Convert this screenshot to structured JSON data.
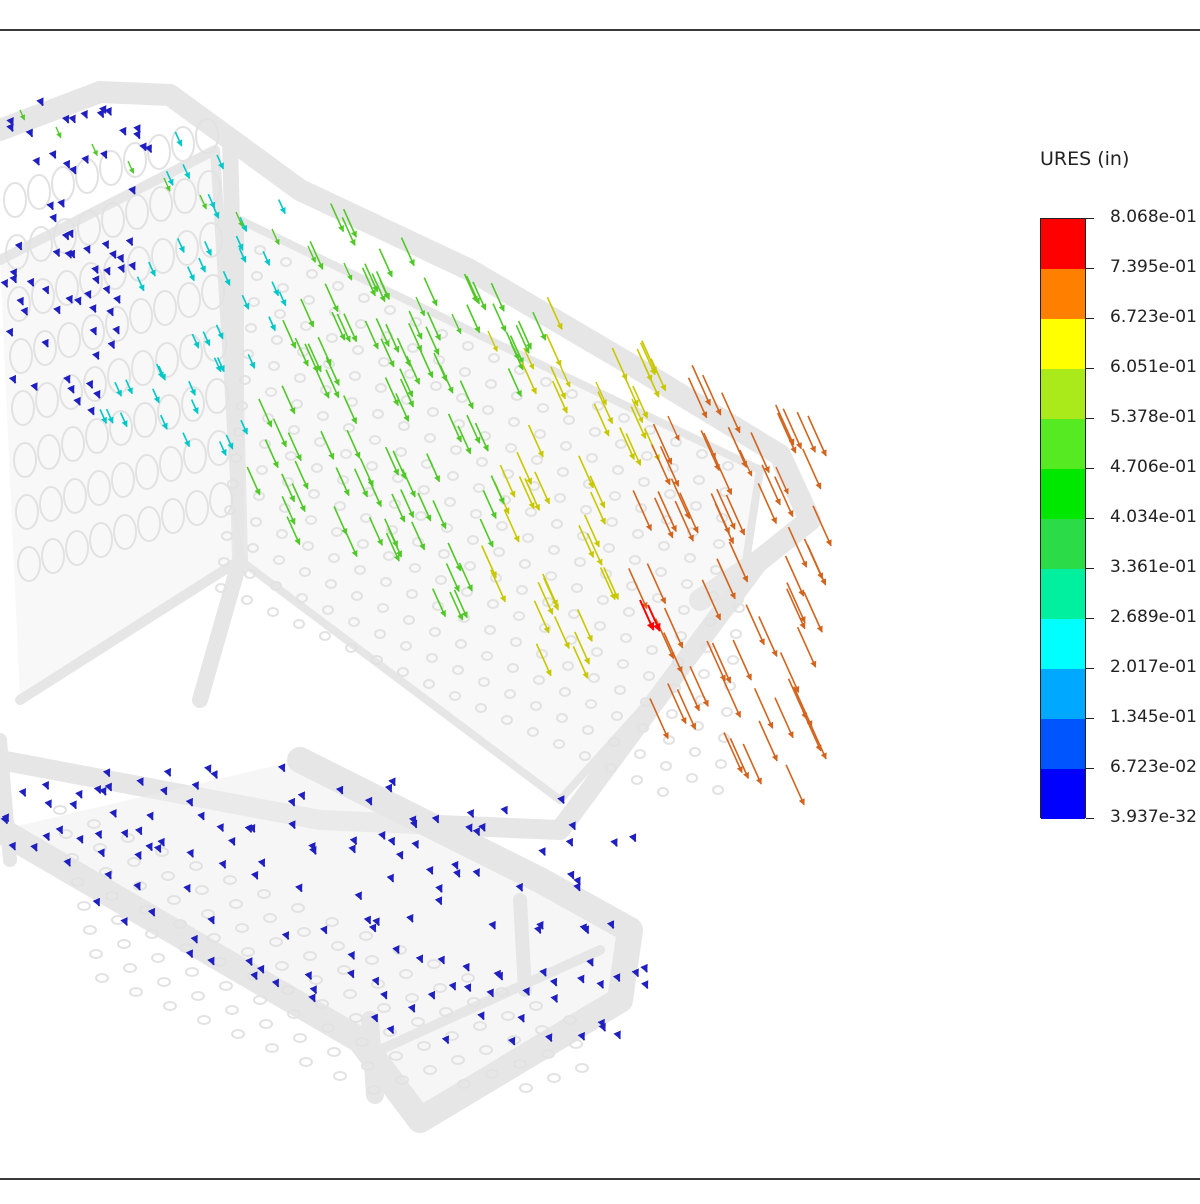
{
  "legend": {
    "title": "URES (in)",
    "labels": [
      "8.068e-01",
      "7.395e-01",
      "6.723e-01",
      "6.051e-01",
      "5.378e-01",
      "4.706e-01",
      "4.034e-01",
      "3.361e-01",
      "2.689e-01",
      "2.017e-01",
      "1.345e-01",
      "6.723e-02",
      "3.937e-32"
    ],
    "colors": [
      "#ff0000",
      "#ff7f00",
      "#ffff00",
      "#aaea1a",
      "#55ea22",
      "#00e800",
      "#2bdc48",
      "#00f0a0",
      "#00ffff",
      "#00a8ff",
      "#0055ff",
      "#0000ff"
    ]
  },
  "model": {
    "object": "shopping cart",
    "vector_colors": {
      "max": "#ff0000",
      "high": "#d2641e",
      "mid_high": "#c8c800",
      "mid": "#50c828",
      "low": "#00c8c8",
      "min": "#2020c0"
    }
  }
}
